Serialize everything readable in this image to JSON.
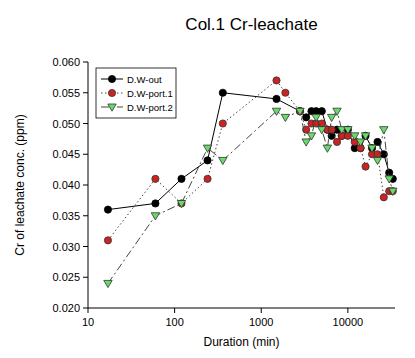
{
  "chart_data": {
    "type": "line",
    "title": "Col.1 Cr-leachate",
    "x_label": "Duration (min)",
    "y_label": "Cr of leachate conc. (ppm)",
    "log": "x",
    "grid": false,
    "legend": "top-left",
    "xlim": [
      10,
      35000
    ],
    "xticks": [
      10,
      100,
      1000,
      10000
    ],
    "ylim": [
      0.02,
      0.06
    ],
    "yticks": [
      {
        "value": 0.02,
        "label": "0.020"
      },
      0.025,
      {
        "value": 0.03,
        "label": "0.030"
      },
      0.035,
      {
        "value": 0.04,
        "label": "0.040"
      },
      0.045,
      {
        "value": 0.05,
        "label": "0.050"
      },
      0.055,
      {
        "value": 0.06,
        "label": "0.060"
      }
    ],
    "series": [
      {
        "name": "D.W-out",
        "color": "#000000",
        "marker": "circle",
        "line_style": "solid",
        "x": [
          17,
          60,
          120,
          240,
          360,
          1500,
          2800,
          3300,
          3800,
          4300,
          5000,
          5800,
          6500,
          7500,
          8500,
          10000,
          12000,
          14000,
          16000,
          19000,
          22000,
          26000,
          30000,
          33000
        ],
        "values": [
          0.036,
          0.037,
          0.041,
          0.044,
          0.055,
          0.054,
          0.052,
          0.051,
          0.052,
          0.052,
          0.052,
          0.049,
          0.048,
          0.049,
          0.048,
          0.049,
          0.046,
          0.046,
          0.048,
          0.046,
          0.047,
          0.045,
          0.042,
          0.041
        ]
      },
      {
        "name": "D.W-port.1",
        "color": "#cc2222",
        "marker": "circle",
        "line_style": "dotted",
        "x": [
          17,
          60,
          120,
          240,
          360,
          1500,
          1900,
          2800,
          3300,
          3800,
          4300,
          5000,
          5800,
          6500,
          7500,
          8500,
          10000,
          12000,
          14000,
          16000,
          19000,
          22000,
          26000,
          30000,
          33000
        ],
        "values": [
          0.031,
          0.041,
          0.037,
          0.041,
          0.05,
          0.057,
          0.055,
          0.052,
          0.049,
          0.05,
          0.05,
          0.05,
          0.049,
          0.049,
          0.047,
          0.048,
          0.048,
          0.047,
          0.046,
          0.043,
          0.045,
          0.045,
          0.038,
          0.039,
          0.039
        ]
      },
      {
        "name": "D.W-port.2",
        "color": "#66dd66",
        "marker": "triangle-down",
        "line_style": "dashdot",
        "x": [
          17,
          60,
          120,
          240,
          360,
          1500,
          1900,
          2800,
          3300,
          3800,
          4300,
          5000,
          5800,
          6500,
          7500,
          8500,
          10000,
          12000,
          14000,
          16000,
          19000,
          22000,
          26000,
          30000,
          33000
        ],
        "values": [
          0.024,
          0.035,
          0.037,
          0.046,
          0.044,
          0.052,
          0.051,
          0.052,
          0.047,
          0.048,
          0.051,
          0.049,
          0.046,
          0.051,
          0.052,
          0.049,
          0.049,
          0.048,
          0.047,
          0.048,
          0.046,
          0.044,
          0.049,
          0.041,
          0.039
        ]
      }
    ]
  }
}
